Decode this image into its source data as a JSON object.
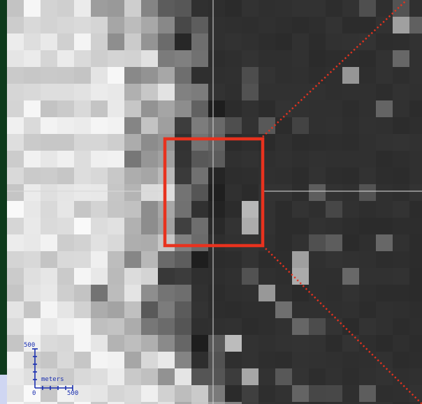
{
  "map": {
    "cursor_lines_color": "#d9d9d9",
    "zoom_box_color": "#e8321e",
    "leader_line_color": "#e8321e",
    "scale_color": "#1a2fb0"
  },
  "scale_bar": {
    "vertical_label": "500",
    "unit_label": "meters",
    "origin_label": "0",
    "horizontal_label": "500"
  }
}
